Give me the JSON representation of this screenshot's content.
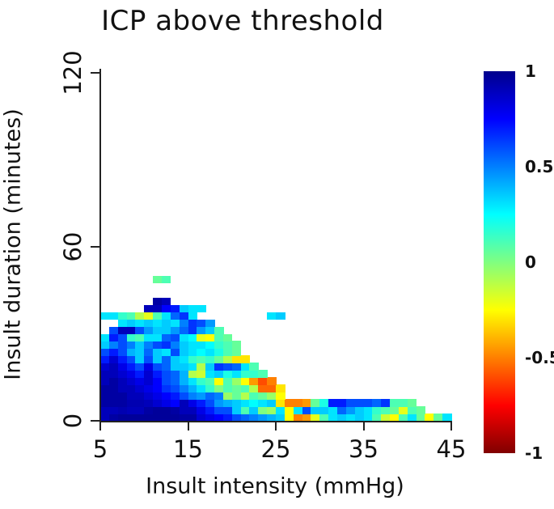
{
  "chart_data": {
    "type": "heatmap",
    "title": "ICP above threshold",
    "xlabel": "Insult intensity (mmHg)",
    "ylabel": "Insult duration (minutes)",
    "x_ticks": [
      5,
      15,
      25,
      35,
      45
    ],
    "y_ticks": [
      0,
      60,
      120
    ],
    "xlim": [
      5,
      45
    ],
    "ylim": [
      0,
      120
    ],
    "grid_lines": false,
    "background": "#ffffff",
    "axis_color": "#222222",
    "colormap": "jet",
    "colormap_stops": [
      {
        "pos": 0.0,
        "color": "#00008C"
      },
      {
        "pos": 0.125,
        "color": "#0000FF"
      },
      {
        "pos": 0.375,
        "color": "#00FFFF"
      },
      {
        "pos": 0.5,
        "color": "#80FF80"
      },
      {
        "pos": 0.625,
        "color": "#FFFF00"
      },
      {
        "pos": 0.875,
        "color": "#FF0000"
      },
      {
        "pos": 1.0,
        "color": "#800000"
      }
    ],
    "colorbar": {
      "tick_labels": [
        "1",
        "0.5",
        "0",
        "-0.5",
        "-1"
      ],
      "tick_values": [
        1,
        0.5,
        0,
        -0.5,
        -1
      ],
      "range": [
        -1,
        1
      ],
      "position": "right"
    },
    "bins": {
      "intensity_bin_mmhg": 1,
      "intensity_start_mmhg": 5,
      "duration_bin_minutes": 2.5,
      "duration_start_minutes": 0,
      "columns": 40,
      "rows": 20,
      "row_order": "bottom-up"
    },
    "values": [
      [
        0.9,
        0.95,
        0.97,
        0.97,
        0.97,
        0.97,
        0.97,
        0.97,
        0.97,
        0.95,
        0.95,
        0.85,
        0.8,
        0.75,
        0.7,
        0.6,
        0.55,
        0.5,
        0.45,
        0.4,
        0.35,
        -0.25,
        -0.5,
        -0.45,
        -0.2,
        0.1,
        0.3,
        0.35,
        0.3,
        0.35,
        0.3,
        0.1,
        -0.15,
        -0.25,
        0.1,
        0.3,
        0.05,
        -0.25,
        0.05,
        0.3
      ],
      [
        0.9,
        0.9,
        0.92,
        0.9,
        0.9,
        0.95,
        0.97,
        0.97,
        0.95,
        0.9,
        0.9,
        0.8,
        0.7,
        0.6,
        0.6,
        0.35,
        0.1,
        0.35,
        0,
        -0.05,
        0.3,
        -0.25,
        0.3,
        0.6,
        0.35,
        0.35,
        0.3,
        0.55,
        0.45,
        0.35,
        0.3,
        0.15,
        0.1,
        0.05,
        -0.2,
        0.1,
        0.05,
        null,
        null,
        null
      ],
      [
        0.95,
        0.95,
        0.95,
        0.92,
        0.92,
        0.9,
        0.85,
        0.8,
        0.75,
        0.9,
        0.8,
        0.7,
        0.6,
        0.45,
        0.4,
        0.35,
        0.3,
        0.25,
        0.3,
        0.35,
        -0.3,
        -0.5,
        -0.5,
        -0.45,
        0.05,
        0.2,
        0.7,
        0.7,
        0.6,
        0.6,
        0.6,
        0.55,
        0.65,
        0.1,
        0.1,
        0.05,
        null,
        null,
        null,
        null
      ],
      [
        0.95,
        0.95,
        0.95,
        0.9,
        0.9,
        0.85,
        0.8,
        0.75,
        0.7,
        0.6,
        0.5,
        0.45,
        0.55,
        0.5,
        -0.05,
        0.05,
        -0.1,
        0.1,
        0.05,
        -0.05,
        -0.25,
        null,
        null,
        null,
        null,
        null,
        null,
        null,
        null,
        null,
        null,
        null,
        null,
        null,
        null,
        null,
        null,
        null,
        null,
        null
      ],
      [
        0.95,
        0.95,
        0.9,
        0.9,
        0.85,
        0.8,
        0.75,
        0.65,
        0.6,
        0.5,
        0.4,
        0.3,
        0.15,
        0,
        0.1,
        0.05,
        0.1,
        -0.1,
        -0.55,
        -0.55,
        -0.3,
        null,
        null,
        null,
        null,
        null,
        null,
        null,
        null,
        null,
        null,
        null,
        null,
        null,
        null,
        null,
        null,
        null,
        null,
        null
      ],
      [
        0.9,
        0.95,
        0.9,
        0.85,
        0.8,
        0.85,
        0.75,
        0.6,
        0.55,
        0.4,
        0.3,
        0.15,
        0.1,
        -0.25,
        0.1,
        -0.05,
        -0.25,
        -0.45,
        -0.6,
        -0.5,
        null,
        null,
        null,
        null,
        null,
        null,
        null,
        null,
        null,
        null,
        null,
        null,
        null,
        null,
        null,
        null,
        null,
        null,
        null,
        null
      ],
      [
        0.9,
        0.9,
        0.85,
        0.8,
        0.7,
        0.85,
        0.7,
        0.6,
        0.55,
        0.4,
        -0.1,
        -0.15,
        0.3,
        0.35,
        0.2,
        0.3,
        0.15,
        0.15,
        0.1,
        null,
        null,
        null,
        null,
        null,
        null,
        null,
        null,
        null,
        null,
        null,
        null,
        null,
        null,
        null,
        null,
        null,
        null,
        null,
        null,
        null
      ],
      [
        0.85,
        0.9,
        0.8,
        0.7,
        0.6,
        0.8,
        0.6,
        0.55,
        0.35,
        0.35,
        0.3,
        -0.1,
        0.35,
        0.65,
        0.6,
        0.55,
        0.3,
        0.1,
        null,
        null,
        null,
        null,
        null,
        null,
        null,
        null,
        null,
        null,
        null,
        null,
        null,
        null,
        null,
        null,
        null,
        null,
        null,
        null,
        null,
        null
      ],
      [
        0.7,
        0.85,
        0.7,
        0.6,
        0.35,
        0.6,
        0.35,
        0.55,
        0.35,
        0.3,
        0.15,
        0.1,
        0.15,
        0.05,
        -0.1,
        -0.3,
        -0.3,
        null,
        null,
        null,
        null,
        null,
        null,
        null,
        null,
        null,
        null,
        null,
        null,
        null,
        null,
        null,
        null,
        null,
        null,
        null,
        null,
        null,
        null,
        null
      ],
      [
        0.6,
        0.7,
        0.6,
        0.4,
        0.35,
        0.55,
        0.35,
        0.3,
        0.6,
        0.35,
        0.3,
        0.25,
        0.3,
        0.2,
        0.1,
        0.05,
        null,
        null,
        null,
        null,
        null,
        null,
        null,
        null,
        null,
        null,
        null,
        null,
        null,
        null,
        null,
        null,
        null,
        null,
        null,
        null,
        null,
        null,
        null,
        null
      ],
      [
        0.35,
        0.5,
        0.6,
        0.5,
        0.35,
        0.5,
        0.6,
        0.65,
        0.5,
        0.35,
        0.3,
        0.3,
        0.25,
        0.15,
        0.1,
        0.05,
        null,
        null,
        null,
        null,
        null,
        null,
        null,
        null,
        null,
        null,
        null,
        null,
        null,
        null,
        null,
        null,
        null,
        null,
        null,
        null,
        null,
        null,
        null,
        null
      ],
      [
        0.3,
        0.7,
        0.6,
        0.15,
        0.1,
        0.3,
        0.3,
        0.55,
        0.6,
        0.3,
        0.25,
        -0.2,
        -0.25,
        0.1,
        0.05,
        null,
        null,
        null,
        null,
        null,
        null,
        null,
        null,
        null,
        null,
        null,
        null,
        null,
        null,
        null,
        null,
        null,
        null,
        null,
        null,
        null,
        null,
        null,
        null,
        null
      ],
      [
        null,
        0.6,
        0.9,
        0.9,
        0.6,
        0.45,
        0.35,
        0.35,
        0.45,
        0.55,
        0.65,
        0.45,
        0.35,
        0.1,
        null,
        null,
        null,
        null,
        null,
        null,
        null,
        null,
        null,
        null,
        null,
        null,
        null,
        null,
        null,
        null,
        null,
        null,
        null,
        null,
        null,
        null,
        null,
        null,
        null,
        null
      ],
      [
        null,
        null,
        0.3,
        0.35,
        0.3,
        0.35,
        0.3,
        0.35,
        0.3,
        0.5,
        0.65,
        0.6,
        0.45,
        null,
        null,
        null,
        null,
        null,
        null,
        null,
        null,
        null,
        null,
        null,
        null,
        null,
        null,
        null,
        null,
        null,
        null,
        null,
        null,
        null,
        null,
        null,
        null,
        null,
        null,
        null
      ],
      [
        0.3,
        0.3,
        0.15,
        0.1,
        -0.1,
        -0.2,
        0.1,
        0.3,
        0.55,
        0.65,
        0.3,
        null,
        null,
        null,
        null,
        null,
        null,
        null,
        null,
        0.3,
        0.35,
        null,
        null,
        null,
        null,
        null,
        null,
        null,
        null,
        null,
        null,
        null,
        null,
        null,
        null,
        null,
        null,
        null,
        null,
        null
      ],
      [
        null,
        null,
        null,
        null,
        null,
        0.9,
        0.9,
        0.75,
        0.7,
        0.35,
        0.3,
        0.3,
        null,
        null,
        null,
        null,
        null,
        null,
        null,
        null,
        null,
        null,
        null,
        null,
        null,
        null,
        null,
        null,
        null,
        null,
        null,
        null,
        null,
        null,
        null,
        null,
        null,
        null,
        null,
        null
      ],
      [
        null,
        null,
        null,
        null,
        null,
        null,
        0.95,
        0.9,
        null,
        null,
        null,
        null,
        null,
        null,
        null,
        null,
        null,
        null,
        null,
        null,
        null,
        null,
        null,
        null,
        null,
        null,
        null,
        null,
        null,
        null,
        null,
        null,
        null,
        null,
        null,
        null,
        null,
        null,
        null,
        null
      ],
      [
        null,
        null,
        null,
        null,
        null,
        null,
        null,
        null,
        null,
        null,
        null,
        null,
        null,
        null,
        null,
        null,
        null,
        null,
        null,
        null,
        null,
        null,
        null,
        null,
        null,
        null,
        null,
        null,
        null,
        null,
        null,
        null,
        null,
        null,
        null,
        null,
        null,
        null,
        null,
        null
      ],
      [
        null,
        null,
        null,
        null,
        null,
        null,
        null,
        null,
        null,
        null,
        null,
        null,
        null,
        null,
        null,
        null,
        null,
        null,
        null,
        null,
        null,
        null,
        null,
        null,
        null,
        null,
        null,
        null,
        null,
        null,
        null,
        null,
        null,
        null,
        null,
        null,
        null,
        null,
        null,
        null
      ],
      [
        null,
        null,
        null,
        null,
        null,
        null,
        0.05,
        0.1,
        null,
        null,
        null,
        null,
        null,
        null,
        null,
        null,
        null,
        null,
        null,
        null,
        null,
        null,
        null,
        null,
        null,
        null,
        null,
        null,
        null,
        null,
        null,
        null,
        null,
        null,
        null,
        null,
        null,
        null,
        null,
        null
      ]
    ]
  }
}
